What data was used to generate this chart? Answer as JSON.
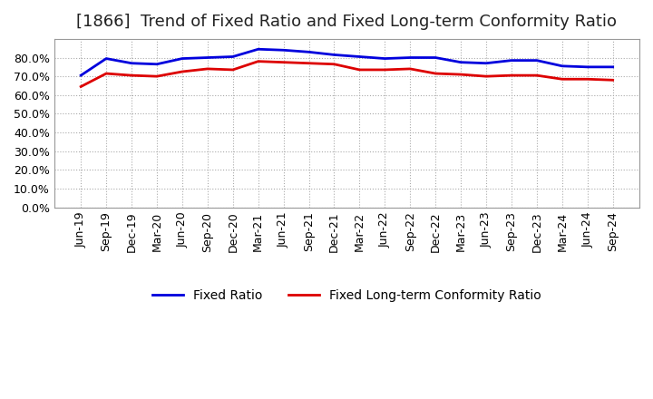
{
  "title": "[1866]  Trend of Fixed Ratio and Fixed Long-term Conformity Ratio",
  "x_labels": [
    "Jun-19",
    "Sep-19",
    "Dec-19",
    "Mar-20",
    "Jun-20",
    "Sep-20",
    "Dec-20",
    "Mar-21",
    "Jun-21",
    "Sep-21",
    "Dec-21",
    "Mar-22",
    "Jun-22",
    "Sep-22",
    "Dec-22",
    "Mar-23",
    "Jun-23",
    "Sep-23",
    "Dec-23",
    "Mar-24",
    "Jun-24",
    "Sep-24"
  ],
  "fixed_ratio": [
    70.5,
    79.5,
    77.0,
    76.5,
    79.5,
    80.0,
    80.5,
    84.5,
    84.0,
    83.0,
    81.5,
    80.5,
    79.5,
    80.0,
    80.0,
    77.5,
    77.0,
    78.5,
    78.5,
    75.5,
    75.0,
    75.0
  ],
  "fixed_lt_ratio": [
    64.5,
    71.5,
    70.5,
    70.0,
    72.5,
    74.0,
    73.5,
    78.0,
    77.5,
    77.0,
    76.5,
    73.5,
    73.5,
    74.0,
    71.5,
    71.0,
    70.0,
    70.5,
    70.5,
    68.5,
    68.5,
    68.0
  ],
  "fixed_ratio_color": "#0000dd",
  "fixed_lt_ratio_color": "#dd0000",
  "ylim": [
    0,
    90
  ],
  "yticks": [
    0.0,
    10.0,
    20.0,
    30.0,
    40.0,
    50.0,
    60.0,
    70.0,
    80.0
  ],
  "background_color": "#ffffff",
  "fig_background_color": "#ffffff",
  "legend_fixed_ratio": "Fixed Ratio",
  "legend_fixed_lt_ratio": "Fixed Long-term Conformity Ratio",
  "title_fontsize": 13,
  "tick_fontsize": 9,
  "legend_fontsize": 10,
  "line_width": 2.0
}
